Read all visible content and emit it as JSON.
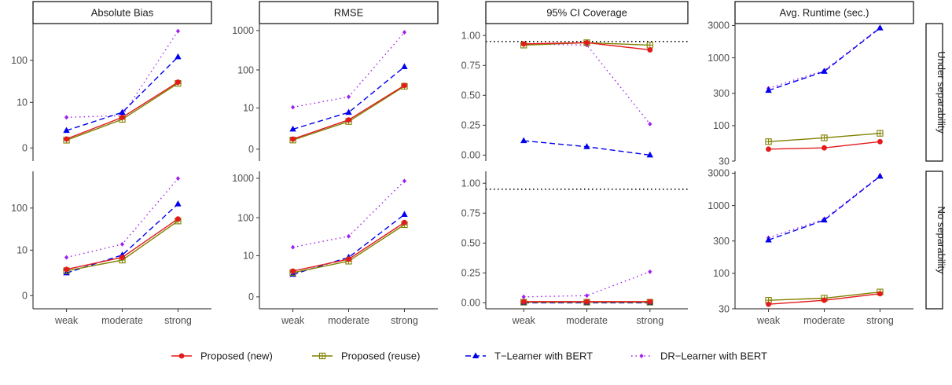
{
  "chart_data": {
    "type": "line",
    "facet_columns": [
      "Absolute Bias",
      "RMSE",
      "95% CI Coverage",
      "Avg. Runtime (sec.)"
    ],
    "facet_rows": [
      "Under separability",
      "No separability"
    ],
    "categories": [
      "weak",
      "moderate",
      "strong"
    ],
    "legend_position": "bottom",
    "series_styles": [
      {
        "name": "Proposed (new)",
        "color": "#e41a1c",
        "marker": "filled-circle",
        "line": "solid"
      },
      {
        "name": "Proposed (reuse)",
        "color": "#808000",
        "marker": "crossed-square",
        "line": "solid"
      },
      {
        "name": "T−Learner with BERT",
        "color": "#0000ee",
        "marker": "filled-triangle",
        "line": "dashed"
      },
      {
        "name": "DR−Learner with BERT",
        "color": "#a020f0",
        "marker": "filled-diamond",
        "line": "dotted"
      }
    ],
    "panels": [
      {
        "row": "Under separability",
        "column": "Absolute Bias",
        "scale": "pseudo-log",
        "yticks": [
          0,
          10,
          100
        ],
        "ytick_labels": [
          "0",
          "10",
          "100"
        ],
        "ylim": [
          -0.5,
          700
        ],
        "series": [
          {
            "name": "Proposed (new)",
            "values": [
              0.6,
              4,
              31
            ]
          },
          {
            "name": "Proposed (reuse)",
            "values": [
              0.5,
              3.5,
              29
            ]
          },
          {
            "name": "T−Learner with BERT",
            "values": [
              1.5,
              5.5,
              120
            ]
          },
          {
            "name": "DR−Learner with BERT",
            "values": [
              4,
              4.5,
              470
            ]
          }
        ]
      },
      {
        "row": "Under separability",
        "column": "RMSE",
        "scale": "pseudo-log",
        "yticks": [
          0,
          10,
          100,
          1000
        ],
        "ytick_labels": [
          "0",
          "10",
          "100",
          "1000"
        ],
        "ylim": [
          -0.5,
          1500
        ],
        "series": [
          {
            "name": "Proposed (new)",
            "values": [
              0.8,
              4.5,
              40
            ]
          },
          {
            "name": "Proposed (reuse)",
            "values": [
              0.7,
              4,
              38
            ]
          },
          {
            "name": "T−Learner with BERT",
            "values": [
              2.2,
              7.5,
              120
            ]
          },
          {
            "name": "DR−Learner with BERT",
            "values": [
              10.5,
              20,
              900
            ]
          }
        ]
      },
      {
        "row": "Under separability",
        "column": "95% CI Coverage",
        "scale": "linear",
        "yticks": [
          0,
          0.25,
          0.5,
          0.75,
          1.0
        ],
        "ytick_labels": [
          "0.00",
          "0.25",
          "0.50",
          "0.75",
          "1.00"
        ],
        "ylim": [
          -0.05,
          1.1
        ],
        "reference_line": 0.95,
        "series": [
          {
            "name": "Proposed (new)",
            "values": [
              0.93,
              0.94,
              0.88
            ]
          },
          {
            "name": "Proposed (reuse)",
            "values": [
              0.92,
              0.94,
              0.92
            ]
          },
          {
            "name": "T−Learner with BERT",
            "values": [
              0.12,
              0.07,
              0.0
            ]
          },
          {
            "name": "DR−Learner with BERT",
            "values": [
              0.93,
              0.92,
              0.26
            ]
          }
        ]
      },
      {
        "row": "Under separability",
        "column": "Avg. Runtime (sec.)",
        "scale": "log",
        "yticks": [
          30,
          100,
          300,
          1000,
          3000
        ],
        "ytick_labels": [
          "30",
          "100",
          "300",
          "1000",
          "3000"
        ],
        "ylim": [
          30,
          3200
        ],
        "series": [
          {
            "name": "Proposed (new)",
            "values": [
              45,
              47,
              58
            ]
          },
          {
            "name": "Proposed (reuse)",
            "values": [
              58,
              66,
              77
            ]
          },
          {
            "name": "T−Learner with BERT",
            "values": [
              330,
              630,
              2750
            ]
          },
          {
            "name": "DR−Learner with BERT",
            "values": [
              355,
              650,
              2800
            ]
          }
        ]
      },
      {
        "row": "No separability",
        "column": "Absolute Bias",
        "scale": "pseudo-log",
        "yticks": [
          0,
          10,
          100
        ],
        "ytick_labels": [
          "0",
          "10",
          "100"
        ],
        "ylim": [
          -0.5,
          700
        ],
        "series": [
          {
            "name": "Proposed (new)",
            "values": [
              3,
              6.5,
              56
            ]
          },
          {
            "name": "Proposed (reuse)",
            "values": [
              2.7,
              5.5,
              50
            ]
          },
          {
            "name": "T−Learner with BERT",
            "values": [
              2.3,
              7.5,
              124
            ]
          },
          {
            "name": "DR−Learner with BERT",
            "values": [
              6.5,
              14,
              480
            ]
          }
        ]
      },
      {
        "row": "No separability",
        "column": "RMSE",
        "scale": "pseudo-log",
        "yticks": [
          0,
          10,
          100,
          1000
        ],
        "ytick_labels": [
          "0",
          "10",
          "100",
          "1000"
        ],
        "ylim": [
          -0.5,
          1500
        ],
        "series": [
          {
            "name": "Proposed (new)",
            "values": [
              3.5,
              8,
              75
            ]
          },
          {
            "name": "Proposed (reuse)",
            "values": [
              3.1,
              7,
              66
            ]
          },
          {
            "name": "T−Learner with BERT",
            "values": [
              2.7,
              9,
              120
            ]
          },
          {
            "name": "DR−Learner with BERT",
            "values": [
              17,
              33,
              850
            ]
          }
        ]
      },
      {
        "row": "No separability",
        "column": "95% CI Coverage",
        "scale": "linear",
        "yticks": [
          0,
          0.25,
          0.5,
          0.75,
          1.0
        ],
        "ytick_labels": [
          "0.00",
          "0.25",
          "0.50",
          "0.75",
          "1.00"
        ],
        "ylim": [
          -0.05,
          1.1
        ],
        "reference_line": 0.95,
        "series": [
          {
            "name": "Proposed (new)",
            "values": [
              0.01,
              0.01,
              0.01
            ]
          },
          {
            "name": "Proposed (reuse)",
            "values": [
              0.005,
              0.005,
              0.005
            ]
          },
          {
            "name": "T−Learner with BERT",
            "values": [
              0.0,
              0.0,
              0.0
            ]
          },
          {
            "name": "DR−Learner with BERT",
            "values": [
              0.05,
              0.06,
              0.26
            ]
          }
        ]
      },
      {
        "row": "No separability",
        "column": "Avg. Runtime (sec.)",
        "scale": "log",
        "yticks": [
          30,
          100,
          300,
          1000,
          3000
        ],
        "ytick_labels": [
          "30",
          "100",
          "300",
          "1000",
          "3000"
        ],
        "ylim": [
          30,
          3200
        ],
        "series": [
          {
            "name": "Proposed (new)",
            "values": [
              35,
              40,
              50
            ]
          },
          {
            "name": "Proposed (reuse)",
            "values": [
              40,
              43,
              53
            ]
          },
          {
            "name": "T−Learner with BERT",
            "values": [
              310,
              610,
              2700
            ]
          },
          {
            "name": "DR−Learner with BERT",
            "values": [
              335,
              630,
              2750
            ]
          }
        ]
      }
    ]
  }
}
